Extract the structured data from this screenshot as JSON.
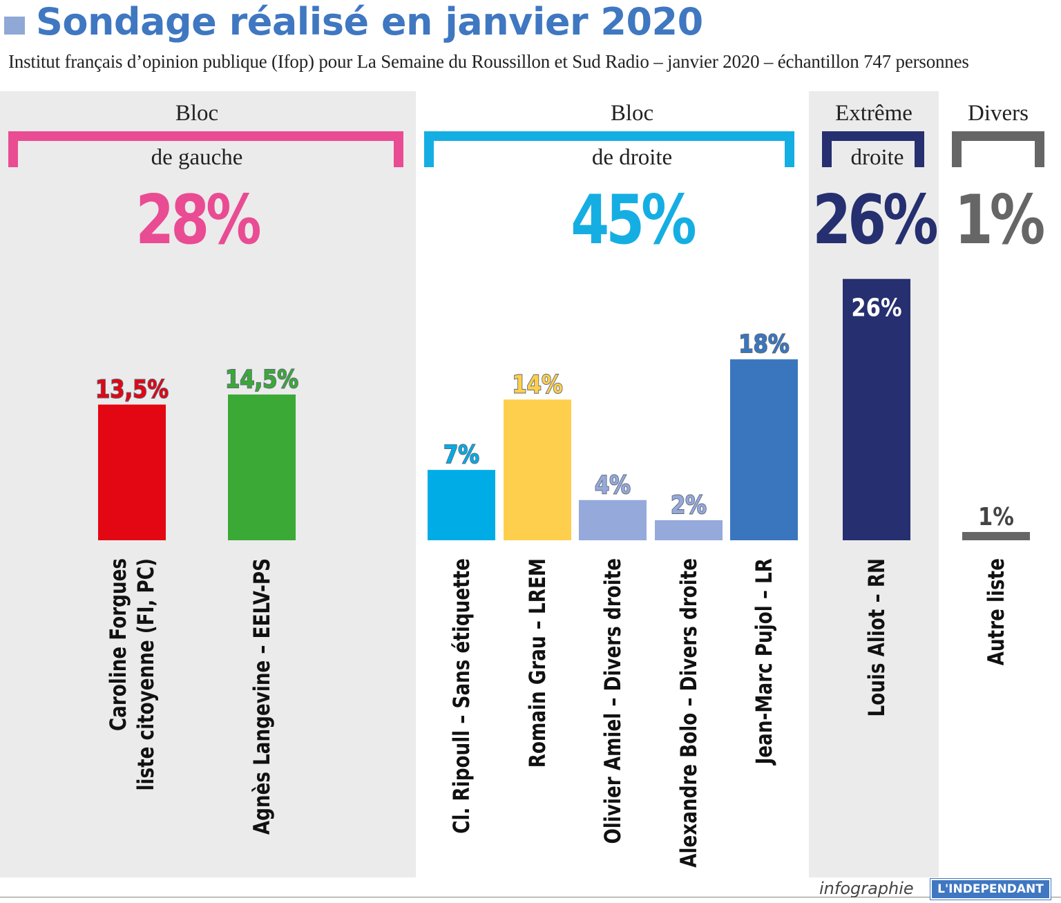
{
  "header": {
    "title": "Sondage réalisé en janvier 2020",
    "subtitle": "Institut français d’opinion publique (Ifop) pour La Semaine du Roussillon et Sud Radio – janvier 2020 – échantillon 747 personnes"
  },
  "groups": [
    {
      "word": "Bloc",
      "sub": "de gauche",
      "total": "28%",
      "color": "#e94c93"
    },
    {
      "word": "Bloc",
      "sub": "de droite",
      "total": "45%",
      "color": "#15aee3"
    },
    {
      "word": "Extrême",
      "sub": "droite",
      "total": "26%",
      "color": "#262f6f"
    },
    {
      "word": "Divers",
      "sub": "",
      "total": "1%",
      "color": "#666666"
    }
  ],
  "footer": {
    "credit": "infographie",
    "brand": "L'INDEPENDANT"
  },
  "chart_data": {
    "type": "bar",
    "title": "Sondage réalisé en janvier 2020",
    "unit": "%",
    "categories": [
      "Caroline Forgues liste citoyenne (FI, PC)",
      "Agnès Langevine – EELV-PS",
      "Cl. Ripoull – Sans étiquette",
      "Romain Grau – LREM",
      "Olivier Amiel – Divers droite",
      "Alexandre Bolo – Divers droite",
      "Jean-Marc Pujol – LR",
      "Louis Aliot – RN",
      "Autre liste"
    ],
    "category_lines": [
      [
        "Caroline Forgues",
        "liste citoyenne (FI, PC)"
      ],
      [
        "Agnès Langevine – EELV-PS"
      ],
      [
        "Cl. Ripoull – Sans étiquette"
      ],
      [
        "Romain Grau – LREM"
      ],
      [
        "Olivier Amiel – Divers droite"
      ],
      [
        "Alexandre Bolo – Divers droite"
      ],
      [
        "Jean-Marc Pujol – LR"
      ],
      [
        "Louis Aliot – RN"
      ],
      [
        "Autre liste"
      ]
    ],
    "values": [
      13.5,
      14.5,
      7,
      14,
      4,
      2,
      18,
      26,
      1
    ],
    "value_labels": [
      "13,5%",
      "14,5%",
      "7%",
      "14%",
      "4%",
      "2%",
      "18%",
      "26%",
      "1%"
    ],
    "colors": [
      "#e30613",
      "#3aa935",
      "#00ace6",
      "#fecf4c",
      "#95a9db",
      "#95a9db",
      "#3a76bd",
      "#262f6f",
      "#666666"
    ],
    "label_colors": [
      "#e30613",
      "#3aa935",
      "#00ace6",
      "#fecf4c",
      "#95a9db",
      "#95a9db",
      "#3a76bd",
      "#ffffff",
      "#444444"
    ],
    "groups": [
      "Bloc de gauche",
      "Bloc de gauche",
      "Bloc de droite",
      "Bloc de droite",
      "Bloc de droite",
      "Bloc de droite",
      "Bloc de droite",
      "Extrême droite",
      "Divers"
    ],
    "grid": false
  }
}
